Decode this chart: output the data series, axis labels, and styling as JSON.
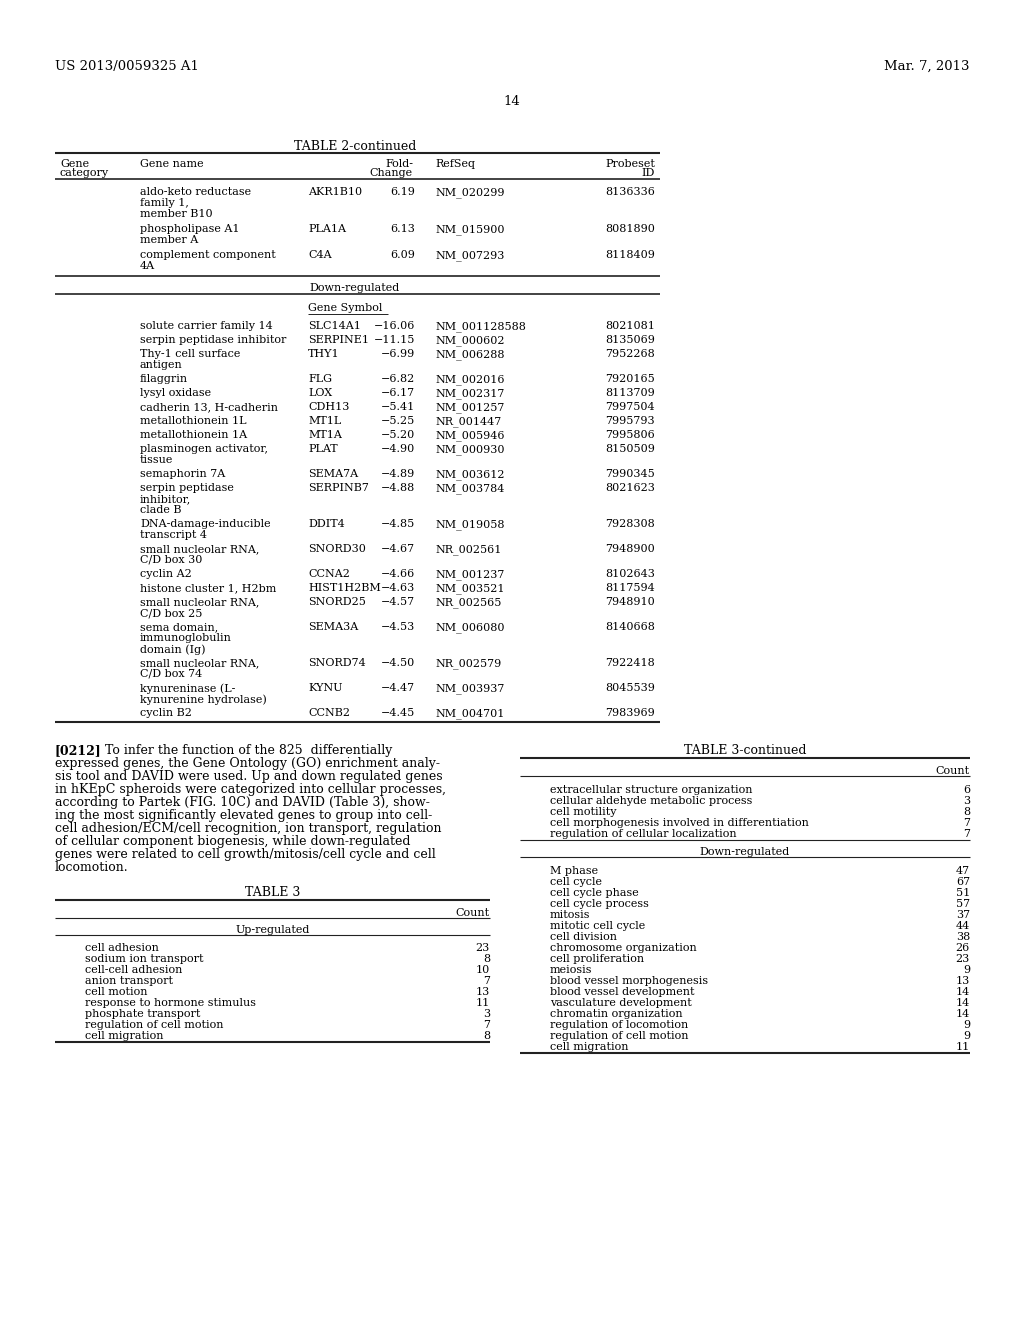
{
  "page_header_left": "US 2013/0059325 A1",
  "page_header_right": "Mar. 7, 2013",
  "page_number": "14",
  "table2_title": "TABLE 2-continued",
  "table3_title": "TABLE 3",
  "table3_continued_title": "TABLE 3-continued",
  "table3_col_header": "Count",
  "table3_upregulated_label": "Up-regulated",
  "table3_upregulated_rows": [
    [
      "cell adhesion",
      "23"
    ],
    [
      "sodium ion transport",
      "8"
    ],
    [
      "cell-cell adhesion",
      "10"
    ],
    [
      "anion transport",
      "7"
    ],
    [
      "cell motion",
      "13"
    ],
    [
      "response to hormone stimulus",
      "11"
    ],
    [
      "phosphate transport",
      "3"
    ],
    [
      "regulation of cell motion",
      "7"
    ],
    [
      "cell migration",
      "8"
    ]
  ],
  "table3_upregulated_continued_rows": [
    [
      "extracellular structure organization",
      "6"
    ],
    [
      "cellular aldehyde metabolic process",
      "3"
    ],
    [
      "cell motility",
      "8"
    ],
    [
      "cell morphogenesis involved in differentiation",
      "7"
    ],
    [
      "regulation of cellular localization",
      "7"
    ]
  ],
  "table3_downregulated_rows": [
    [
      "M phase",
      "47"
    ],
    [
      "cell cycle",
      "67"
    ],
    [
      "cell cycle phase",
      "51"
    ],
    [
      "cell cycle process",
      "57"
    ],
    [
      "mitosis",
      "37"
    ],
    [
      "mitotic cell cycle",
      "44"
    ],
    [
      "cell division",
      "38"
    ],
    [
      "chromosome organization",
      "26"
    ],
    [
      "cell proliferation",
      "23"
    ],
    [
      "meiosis",
      "9"
    ],
    [
      "blood vessel morphogenesis",
      "13"
    ],
    [
      "blood vessel development",
      "14"
    ],
    [
      "vasculature development",
      "14"
    ],
    [
      "chromatin organization",
      "14"
    ],
    [
      "regulation of locomotion",
      "9"
    ],
    [
      "regulation of cell motion",
      "9"
    ],
    [
      "cell migration",
      "11"
    ]
  ],
  "bg_color": "#ffffff"
}
